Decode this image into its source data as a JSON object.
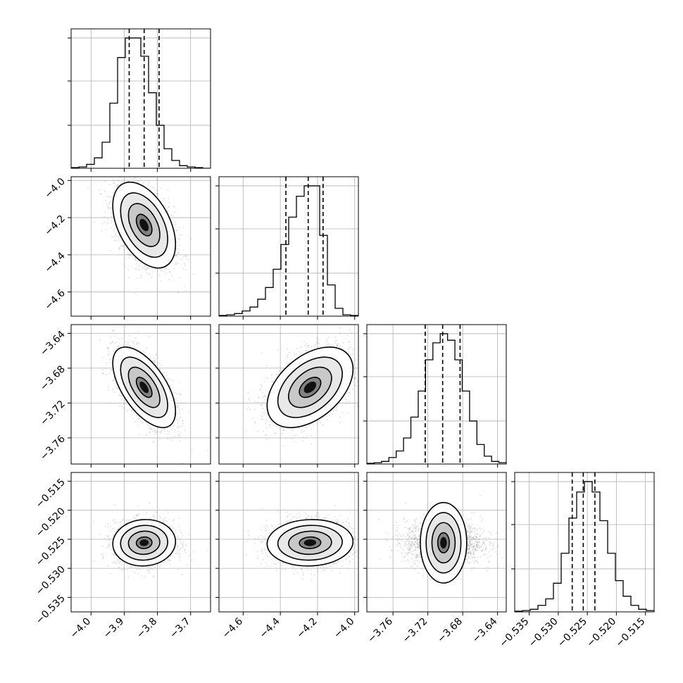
{
  "chart_data": {
    "type": "corner",
    "parameters": [
      {
        "mean": -3.84,
        "std": 0.045,
        "range": [
          -4.06,
          -3.64
        ],
        "ticks": [
          -4.0,
          -3.9,
          -3.8,
          -3.7
        ],
        "tick_labels": [
          "−4.0",
          "−3.9",
          "−3.8",
          "−3.7"
        ],
        "quantiles": [
          -3.885,
          -3.84,
          -3.795
        ],
        "hist": [
          0.005,
          0.01,
          0.03,
          0.08,
          0.2,
          0.5,
          0.85,
          1.0,
          1.0,
          0.86,
          0.58,
          0.33,
          0.15,
          0.06,
          0.02,
          0.01,
          0.005,
          0
        ]
      },
      {
        "mean": -4.24,
        "std": 0.11,
        "range": [
          -4.73,
          -3.98
        ],
        "ticks": [
          -4.6,
          -4.4,
          -4.2,
          -4.0
        ],
        "tick_labels": [
          "−4.6",
          "−4.4",
          "−4.2",
          "−4.0"
        ],
        "quantiles": [
          -4.37,
          -4.25,
          -4.17
        ],
        "hist": [
          0.005,
          0.01,
          0.02,
          0.04,
          0.07,
          0.13,
          0.22,
          0.36,
          0.55,
          0.76,
          0.92,
          1.0,
          1.0,
          0.62,
          0.24,
          0.06,
          0.01,
          0.005
        ]
      },
      {
        "mean": -3.702,
        "std": 0.022,
        "range": [
          -3.79,
          -3.63
        ],
        "ticks": [
          -3.76,
          -3.72,
          -3.68,
          -3.64
        ],
        "tick_labels": [
          "−3.76",
          "−3.72",
          "−3.68",
          "−3.64"
        ],
        "quantiles": [
          -3.723,
          -3.703,
          -3.683
        ],
        "hist": [
          0.005,
          0.01,
          0.02,
          0.05,
          0.1,
          0.2,
          0.36,
          0.56,
          0.8,
          0.93,
          1.0,
          0.95,
          0.8,
          0.56,
          0.33,
          0.15,
          0.06,
          0.02,
          0.01
        ]
      },
      {
        "mean": -0.5256,
        "std": 0.0019,
        "range": [
          -0.5375,
          -0.5135
        ],
        "ticks": [
          -0.535,
          -0.53,
          -0.525,
          -0.52,
          -0.515
        ],
        "tick_labels": [
          "−0.535",
          "−0.530",
          "−0.525",
          "−0.520",
          "−0.515"
        ],
        "quantiles": [
          -0.5276,
          -0.5257,
          -0.5237
        ],
        "hist": [
          0.005,
          0.01,
          0.02,
          0.05,
          0.1,
          0.22,
          0.45,
          0.72,
          0.92,
          1.0,
          0.92,
          0.7,
          0.45,
          0.24,
          0.12,
          0.05,
          0.02,
          0.01
        ]
      }
    ],
    "hist_y_ticks": [
      0.33,
      0.67,
      1.0
    ],
    "correlations": [
      [
        1,
        -0.45,
        -0.6,
        0.05
      ],
      [
        -0.45,
        1,
        0.45,
        0.05
      ],
      [
        -0.6,
        0.45,
        1,
        0.0
      ],
      [
        0.05,
        0.05,
        0.0,
        1
      ]
    ],
    "contour_levels_sigma": [
      0.5,
      1.0,
      1.5,
      2.0
    ],
    "grid": true,
    "xlabels": [
      "",
      "",
      "",
      ""
    ],
    "ylabels": [
      "",
      "",
      "",
      ""
    ]
  }
}
